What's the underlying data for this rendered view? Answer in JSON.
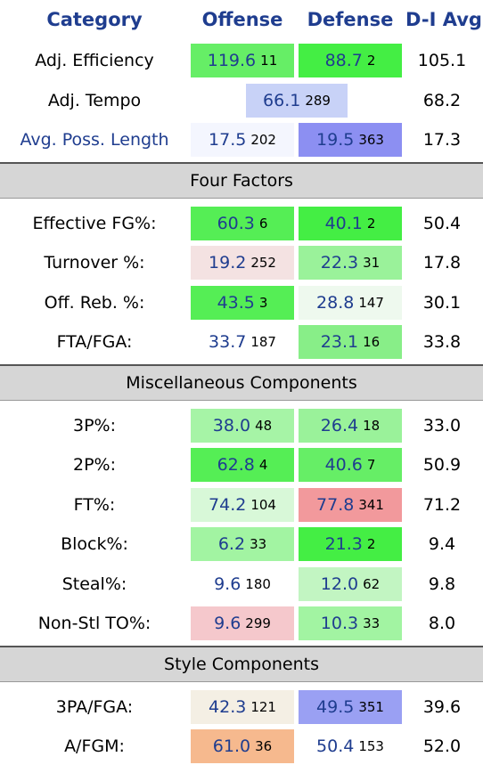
{
  "headers": {
    "category": "Category",
    "offense": "Offense",
    "defense": "Defense",
    "avg": "D-I Avg"
  },
  "top_rows": [
    {
      "label": "Adj. Efficiency",
      "link": false,
      "off": {
        "value": "119.6",
        "rank": "11",
        "color": "#66ee66"
      },
      "def": {
        "value": "88.7",
        "rank": "2",
        "color": "#44ee44"
      },
      "avg": "105.1"
    },
    {
      "label": "Adj. Tempo",
      "link": false,
      "merged": true,
      "off": {
        "value": "66.1",
        "rank": "289",
        "color": "#c8d2f7"
      },
      "avg": "68.2"
    },
    {
      "label": "Avg. Poss. Length",
      "link": true,
      "off": {
        "value": "17.5",
        "rank": "202",
        "color": "#f4f6fe"
      },
      "def": {
        "value": "19.5",
        "rank": "363",
        "color": "#8c8ff2"
      },
      "avg": "17.3"
    }
  ],
  "sections": [
    {
      "title": "Four Factors",
      "rows": [
        {
          "label": "Effective FG%:",
          "off": {
            "value": "60.3",
            "rank": "6",
            "color": "#55ee55"
          },
          "def": {
            "value": "40.1",
            "rank": "2",
            "color": "#44ee44"
          },
          "avg": "50.4"
        },
        {
          "label": "Turnover %:",
          "off": {
            "value": "19.2",
            "rank": "252",
            "color": "#f4e2e2"
          },
          "def": {
            "value": "22.3",
            "rank": "31",
            "color": "#9af29a"
          },
          "avg": "17.8"
        },
        {
          "label": "Off. Reb. %:",
          "off": {
            "value": "43.5",
            "rank": "3",
            "color": "#55ee55"
          },
          "def": {
            "value": "28.8",
            "rank": "147",
            "color": "#eef9ee"
          },
          "avg": "30.1"
        },
        {
          "label": "FTA/FGA:",
          "off": {
            "value": "33.7",
            "rank": "187",
            "color": "#ffffff"
          },
          "def": {
            "value": "23.1",
            "rank": "16",
            "color": "#88ee88"
          },
          "avg": "33.8"
        }
      ]
    },
    {
      "title": "Miscellaneous Components",
      "rows": [
        {
          "label": "3P%:",
          "off": {
            "value": "38.0",
            "rank": "48",
            "color": "#a6f4a6"
          },
          "def": {
            "value": "26.4",
            "rank": "18",
            "color": "#9af29a"
          },
          "avg": "33.0"
        },
        {
          "label": "2P%:",
          "off": {
            "value": "62.8",
            "rank": "4",
            "color": "#55ee55"
          },
          "def": {
            "value": "40.6",
            "rank": "7",
            "color": "#66ee66"
          },
          "avg": "50.9"
        },
        {
          "label": "FT%:",
          "off": {
            "value": "74.2",
            "rank": "104",
            "color": "#d8f8d8"
          },
          "def": {
            "value": "77.8",
            "rank": "341",
            "color": "#f2999c"
          },
          "avg": "71.2"
        },
        {
          "label": "Block%:",
          "off": {
            "value": "6.2",
            "rank": "33",
            "color": "#a2f4a2"
          },
          "def": {
            "value": "21.3",
            "rank": "2",
            "color": "#44ee44"
          },
          "avg": "9.4"
        },
        {
          "label": "Steal%:",
          "off": {
            "value": "9.6",
            "rank": "180",
            "color": "#ffffff"
          },
          "def": {
            "value": "12.0",
            "rank": "62",
            "color": "#c2f5c2"
          },
          "avg": "9.8"
        },
        {
          "label": "Non-Stl TO%:",
          "off": {
            "value": "9.6",
            "rank": "299",
            "color": "#f5c8cc"
          },
          "def": {
            "value": "10.3",
            "rank": "33",
            "color": "#a2f4a2"
          },
          "avg": "8.0"
        }
      ]
    },
    {
      "title": "Style Components",
      "rows": [
        {
          "label": "3PA/FGA:",
          "off": {
            "value": "42.3",
            "rank": "121",
            "color": "#f4efe4"
          },
          "def": {
            "value": "49.5",
            "rank": "351",
            "color": "#9aa0f3"
          },
          "avg": "39.6"
        },
        {
          "label": "A/FGM:",
          "off": {
            "value": "61.0",
            "rank": "36",
            "color": "#f6b98e"
          },
          "def": {
            "value": "50.4",
            "rank": "153",
            "color": "#ffffff"
          },
          "avg": "52.0"
        }
      ]
    }
  ]
}
